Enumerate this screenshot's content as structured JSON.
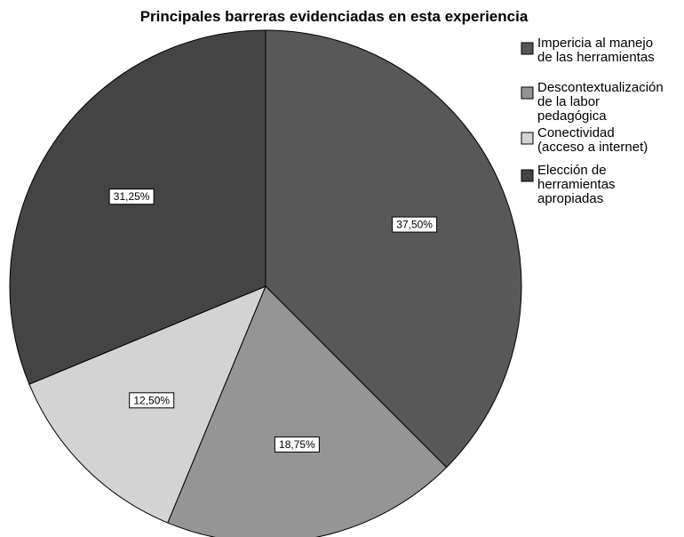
{
  "chart_data": {
    "type": "pie",
    "title": "Principales barreras evidenciadas en esta experiencia",
    "slices": [
      {
        "label": "Imperica al manejo de las herramientas",
        "legend_lines": [
          "Impericia al manejo",
          "de las herramientas"
        ],
        "value": 37.5,
        "display": "37,50%",
        "color": "#585858"
      },
      {
        "label": "Descontextualización de la labor pedagógica",
        "legend_lines": [
          "Descontextualización",
          "de la labor",
          "pedagógica"
        ],
        "value": 18.75,
        "display": "18,75%",
        "color": "#959595"
      },
      {
        "label": "Conectividad (acceso a internet)",
        "legend_lines": [
          "Conectividad",
          "(acceso a internet)"
        ],
        "value": 12.5,
        "display": "12,50%",
        "color": "#d3d3d3"
      },
      {
        "label": "Elección de herramientas apropiadas",
        "legend_lines": [
          "Elección de",
          "herramientas",
          "apropiadas"
        ],
        "value": 31.25,
        "display": "31,25%",
        "color": "#444444"
      }
    ],
    "start_angle": "12 o'clock",
    "direction": "clockwise",
    "legend_position": "right"
  }
}
